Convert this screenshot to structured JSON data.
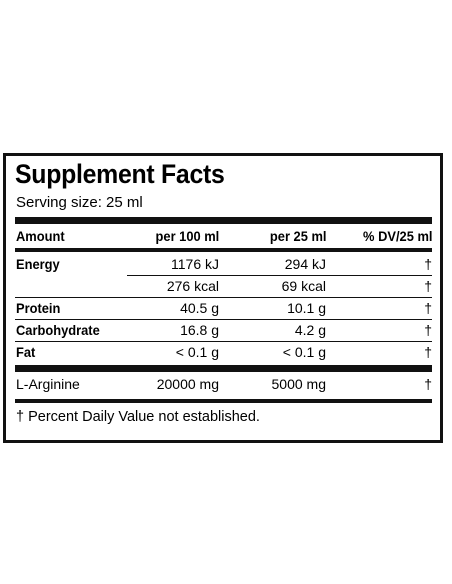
{
  "title": "Supplement Facts",
  "serving_size": "Serving size: 25 ml",
  "columns": {
    "amount": "Amount",
    "per100": "per 100 ml",
    "per25": "per 25 ml",
    "dv": "% DV/25 ml"
  },
  "rows": [
    {
      "name": "Energy",
      "per100": "1176 kJ",
      "per25": "294 kJ",
      "dv": "†"
    },
    {
      "name": "",
      "per100": "276 kcal",
      "per25": "69 kcal",
      "dv": "†"
    },
    {
      "name": "Protein",
      "per100": "40.5 g",
      "per25": "10.1 g",
      "dv": "†"
    },
    {
      "name": "Carbohydrate",
      "per100": "16.8 g",
      "per25": "4.2 g",
      "dv": "†"
    },
    {
      "name": "Fat",
      "per100": "< 0.1 g",
      "per25": "< 0.1 g",
      "dv": "†"
    },
    {
      "name": "L-Arginine",
      "per100": "20000 mg",
      "per25": "5000 mg",
      "dv": "†"
    }
  ],
  "footnote": "† Percent Daily Value not established."
}
